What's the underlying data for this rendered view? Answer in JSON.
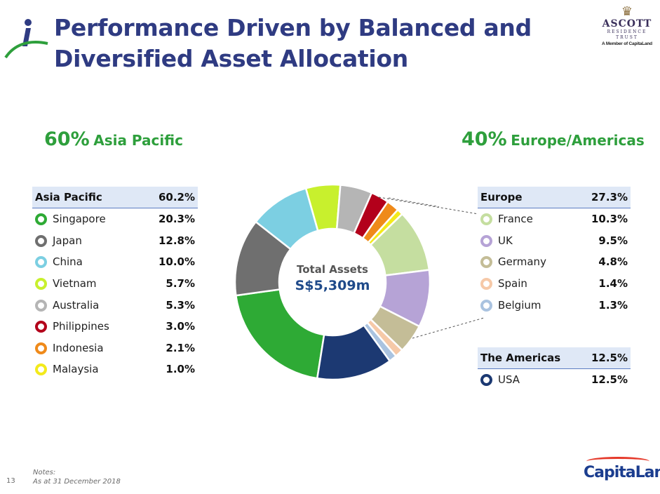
{
  "header": {
    "title_line1": "Performance Driven by Balanced and",
    "title_line2": "Diversified Asset Allocation",
    "brand": {
      "name": "ASCOTT",
      "sub1": "RESIDENCE",
      "sub2": "TRUST",
      "member": "A Member of CapitaLand"
    }
  },
  "regions": {
    "asia_pct": "60%",
    "asia_label": "Asia Pacific",
    "europe_pct": "40%",
    "europe_label": "Europe/Americas"
  },
  "center": {
    "label": "Total Assets",
    "value": "S$5,309m"
  },
  "legend_asia": {
    "header": "Asia Pacific",
    "header_value": "60.2%",
    "items": [
      {
        "label": "Singapore",
        "value": "20.3%",
        "color": "#2eaa35"
      },
      {
        "label": "Japan",
        "value": "12.8%",
        "color": "#6f6f6f"
      },
      {
        "label": "China",
        "value": "10.0%",
        "color": "#7ccfe2"
      },
      {
        "label": "Vietnam",
        "value": "5.7%",
        "color": "#c8f02d"
      },
      {
        "label": "Australia",
        "value": "5.3%",
        "color": "#b5b5b5"
      },
      {
        "label": "Philippines",
        "value": "3.0%",
        "color": "#b3001b"
      },
      {
        "label": "Indonesia",
        "value": "2.1%",
        "color": "#ef8a1a"
      },
      {
        "label": "Malaysia",
        "value": "1.0%",
        "color": "#f3ea1c"
      }
    ]
  },
  "legend_europe": {
    "header": "Europe",
    "header_value": "27.3%",
    "items": [
      {
        "label": "France",
        "value": "10.3%",
        "color": "#c5dea0"
      },
      {
        "label": "UK",
        "value": "9.5%",
        "color": "#b6a3d6"
      },
      {
        "label": "Germany",
        "value": "4.8%",
        "color": "#c4bd97"
      },
      {
        "label": "Spain",
        "value": "1.4%",
        "color": "#f6c9a8"
      },
      {
        "label": "Belgium",
        "value": "1.3%",
        "color": "#aac3e0"
      }
    ]
  },
  "legend_americas": {
    "header": "The Americas",
    "header_value": "12.5%",
    "items": [
      {
        "label": "USA",
        "value": "12.5%",
        "color": "#1c3972"
      }
    ]
  },
  "footer": {
    "notes_label": "Notes:",
    "notes_text": "As at 31 December 2018",
    "page_number": "13",
    "company_logo": "CapitaLand"
  },
  "chart_data": {
    "type": "pie",
    "variant": "donut",
    "title": "",
    "center_text": [
      "Total Assets",
      "S$5,309m"
    ],
    "categories": [
      "Singapore",
      "Japan",
      "China",
      "Vietnam",
      "Australia",
      "Philippines",
      "Indonesia",
      "Malaysia",
      "France",
      "UK",
      "Germany",
      "Spain",
      "Belgium",
      "USA"
    ],
    "values": [
      20.3,
      12.8,
      10.0,
      5.7,
      5.3,
      3.0,
      2.1,
      1.0,
      10.3,
      9.5,
      4.8,
      1.4,
      1.3,
      12.5
    ],
    "colors": [
      "#2eaa35",
      "#6f6f6f",
      "#7ccfe2",
      "#c8f02d",
      "#b5b5b5",
      "#b3001b",
      "#ef8a1a",
      "#f3ea1c",
      "#c5dea0",
      "#b6a3d6",
      "#c4bd97",
      "#f6c9a8",
      "#aac3e0",
      "#1c3972"
    ],
    "unit": "%"
  }
}
